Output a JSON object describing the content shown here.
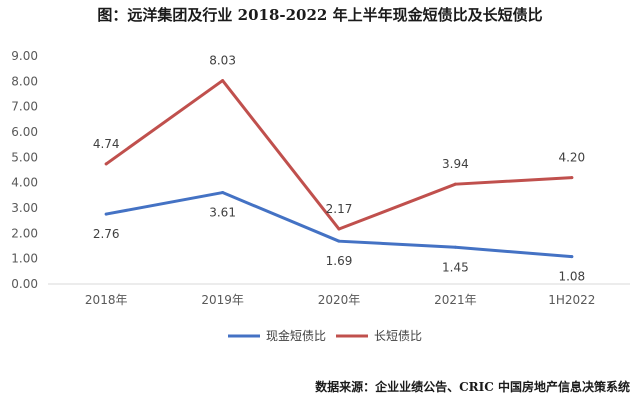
{
  "title": "图：远洋集团及行业 2018-2022 年上半年现金短债比及长短债比",
  "source": "数据来源：企业业绩公告、CRIC 中国房地产信息决策系统",
  "chart_data": {
    "type": "line",
    "categories": [
      "2018年",
      "2019年",
      "2020年",
      "2021年",
      "1H2022"
    ],
    "ylim": [
      0,
      9
    ],
    "yticks": [
      "0.00",
      "1.00",
      "2.00",
      "3.00",
      "4.00",
      "5.00",
      "6.00",
      "7.00",
      "8.00",
      "9.00"
    ],
    "grid": false,
    "legend_position": "bottom",
    "series": [
      {
        "name": "现金短债比",
        "color": "#4472C4",
        "values": [
          2.76,
          3.61,
          1.69,
          1.45,
          1.08
        ],
        "labels": [
          "2.76",
          "3.61",
          "1.69",
          "1.45",
          "1.08"
        ],
        "label_position": "below"
      },
      {
        "name": "长短债比",
        "color": "#C0504D",
        "values": [
          4.74,
          8.03,
          2.17,
          3.94,
          4.2
        ],
        "labels": [
          "4.74",
          "8.03",
          "2.17",
          "3.94",
          "4.20"
        ],
        "label_position": "above"
      }
    ]
  }
}
